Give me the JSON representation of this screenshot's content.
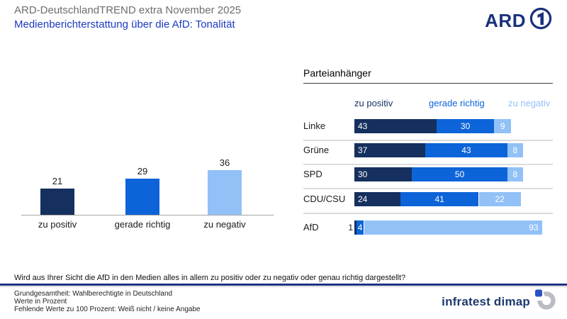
{
  "header": {
    "supertitle": "ARD-DeutschlandTREND extra November 2025",
    "title": "Medienberichterstattung über die AfD: Tonalität",
    "brand": "ARD"
  },
  "colors": {
    "series": [
      "#15305e",
      "#0c64d8",
      "#92c1f7"
    ],
    "title_blue": "#1c3ac0",
    "supertitle_gray": "#6d6e70",
    "ard_navy": "#19317b",
    "rule_navy": "#1e3282",
    "infratest_navy": "#1e3a6e",
    "infratest_gray": "#b9bdc2",
    "infratest_blue": "#2a50c5"
  },
  "chart_data": [
    {
      "type": "bar",
      "title": "",
      "categories": [
        "zu positiv",
        "gerade richtig",
        "zu negativ"
      ],
      "values": [
        21,
        29,
        36
      ],
      "unit": "percent",
      "ylabel": "",
      "xlabel": ""
    },
    {
      "type": "bar",
      "subtype": "horizontal-stacked",
      "title": "Parteianhänger",
      "categories": [
        "Linke",
        "Grüne",
        "SPD",
        "CDU/CSU",
        "AfD"
      ],
      "series": [
        {
          "name": "zu positiv",
          "values": [
            43,
            37,
            30,
            24,
            1
          ]
        },
        {
          "name": "gerade richtig",
          "values": [
            30,
            43,
            50,
            41,
            4
          ]
        },
        {
          "name": "zu negativ",
          "values": [
            9,
            8,
            8,
            22,
            93
          ]
        }
      ],
      "unit": "percent",
      "xlim": [
        0,
        100
      ],
      "legend_position": "top"
    }
  ],
  "footer": {
    "question": "Wird aus Ihrer Sicht die AfD in den Medien alles in allem zu positiv oder zu negativ oder genau richtig dargestellt?",
    "notes": [
      "Grundgesamtheit: Wahlberechtigte in Deutschland",
      "Werte in Prozent",
      "Fehlende Werte zu 100 Prozent: Weiß nicht / keine Angabe"
    ],
    "brand": "infratest dimap"
  }
}
